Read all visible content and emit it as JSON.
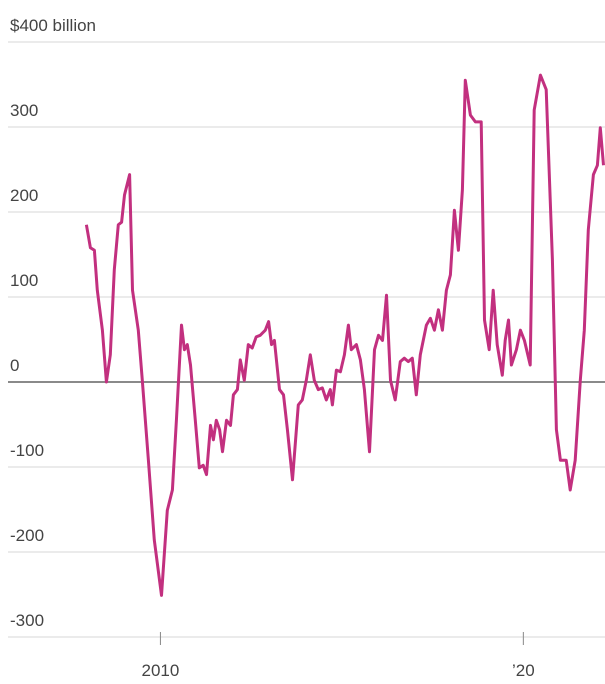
{
  "chart_data": {
    "type": "line",
    "x": [
      2007.96,
      2008.07,
      2008.18,
      2008.26,
      2008.4,
      2008.51,
      2008.62,
      2008.73,
      2008.84,
      2008.93,
      2009.01,
      2009.15,
      2009.23,
      2009.39,
      2009.5,
      2009.67,
      2009.83,
      2010.03,
      2010.19,
      2010.33,
      2010.44,
      2010.58,
      2010.66,
      2010.74,
      2010.83,
      2010.96,
      2011.07,
      2011.18,
      2011.27,
      2011.38,
      2011.46,
      2011.54,
      2011.63,
      2011.71,
      2011.82,
      2011.93,
      2012.01,
      2012.12,
      2012.2,
      2012.31,
      2012.42,
      2012.53,
      2012.64,
      2012.75,
      2012.89,
      2012.98,
      2013.06,
      2013.14,
      2013.28,
      2013.39,
      2013.5,
      2013.64,
      2013.8,
      2013.91,
      2014.02,
      2014.13,
      2014.24,
      2014.35,
      2014.46,
      2014.57,
      2014.68,
      2014.74,
      2014.85,
      2014.96,
      2015.07,
      2015.18,
      2015.26,
      2015.4,
      2015.51,
      2015.62,
      2015.76,
      2015.9,
      2016.01,
      2016.12,
      2016.23,
      2016.34,
      2016.47,
      2016.61,
      2016.72,
      2016.83,
      2016.94,
      2017.05,
      2017.16,
      2017.33,
      2017.44,
      2017.55,
      2017.66,
      2017.77,
      2017.88,
      2017.99,
      2018.1,
      2018.21,
      2018.32,
      2018.4,
      2018.54,
      2018.68,
      2018.84,
      2018.93,
      2019.06,
      2019.17,
      2019.28,
      2019.42,
      2019.5,
      2019.59,
      2019.67,
      2019.81,
      2019.92,
      2020.03,
      2020.19,
      2020.3,
      2020.47,
      2020.63,
      2020.8,
      2020.91,
      2021.02,
      2021.18,
      2021.29,
      2021.43,
      2021.57,
      2021.68,
      2021.79,
      2021.93,
      2022.04,
      2022.12,
      2022.21
    ],
    "values": [
      185,
      158,
      155,
      108,
      61,
      0,
      32,
      132,
      185,
      188,
      220,
      244,
      108,
      61,
      2,
      -92,
      -186,
      -251,
      -151,
      -127,
      -45,
      67,
      38,
      44,
      20,
      -45,
      -101,
      -98,
      -109,
      -51,
      -68,
      -45,
      -56,
      -82,
      -45,
      -51,
      -15,
      -9,
      26,
      2,
      44,
      40,
      53,
      55,
      61,
      71,
      44,
      49,
      -9,
      -15,
      -56,
      -115,
      -27,
      -21,
      2,
      32,
      2,
      -9,
      -7,
      -21,
      -9,
      -27,
      14,
      12,
      32,
      67,
      38,
      44,
      26,
      -9,
      -82,
      38,
      55,
      49,
      102,
      2,
      -21,
      24,
      28,
      24,
      28,
      -15,
      32,
      67,
      75,
      61,
      85,
      61,
      108,
      126,
      202,
      155,
      226,
      355,
      314,
      306,
      306,
      73,
      38,
      108,
      44,
      8,
      49,
      73,
      20,
      38,
      61,
      49,
      20,
      320,
      361,
      344,
      144,
      -56,
      -92,
      -92,
      -127,
      -92,
      2,
      61,
      179,
      244,
      255,
      299,
      255
    ],
    "color": "#c2307f",
    "xlim": [
      2005.8,
      2022.25
    ],
    "xticks": [
      2010,
      {
        "value": 2020,
        "label": "’20"
      }
    ],
    "ylim": [
      -300,
      400
    ],
    "yticks": [
      {
        "value": 400,
        "label": "$400 billion"
      },
      300,
      200,
      100,
      0,
      -100,
      -200,
      -300
    ],
    "grid": true
  }
}
